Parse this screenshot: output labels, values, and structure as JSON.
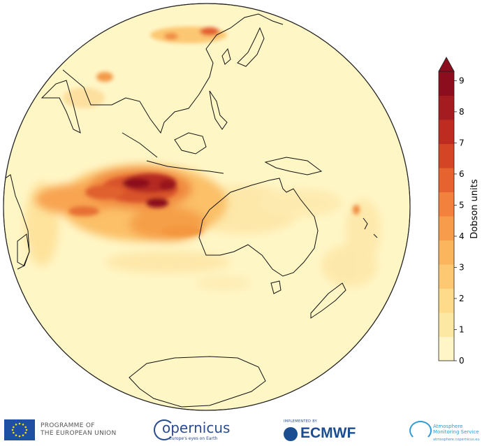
{
  "colorbar": {
    "label": "Dobson units",
    "ticks": [
      "0",
      "1",
      "2",
      "3",
      "4",
      "5",
      "6",
      "7",
      "8",
      "9"
    ],
    "colors": [
      "#fff5c6",
      "#fde8a3",
      "#fddb8a",
      "#fcc972",
      "#fbb55c",
      "#f79c4b",
      "#f1813c",
      "#e6632f",
      "#d44526",
      "#bd2b21",
      "#a51c20",
      "#8b0d1e"
    ],
    "extend": "max"
  },
  "map": {
    "projection": "orthographic",
    "background": "#fff6c6",
    "coastline_color": "#111111"
  },
  "footer": {
    "eu_line1": "PROGRAMME OF",
    "eu_line2": "THE EUROPEAN UNION",
    "copernicus_name": "opernicus",
    "copernicus_tagline": "Europe's eyes on Earth",
    "ecmwf_implemented_by": "IMPLEMENTED BY",
    "ecmwf_name": "ECMWF",
    "cams_title_line1": "Atmosphere",
    "cams_title_line2": "Monitoring Service",
    "cams_url": "atmosphere.copernicus.eu"
  }
}
